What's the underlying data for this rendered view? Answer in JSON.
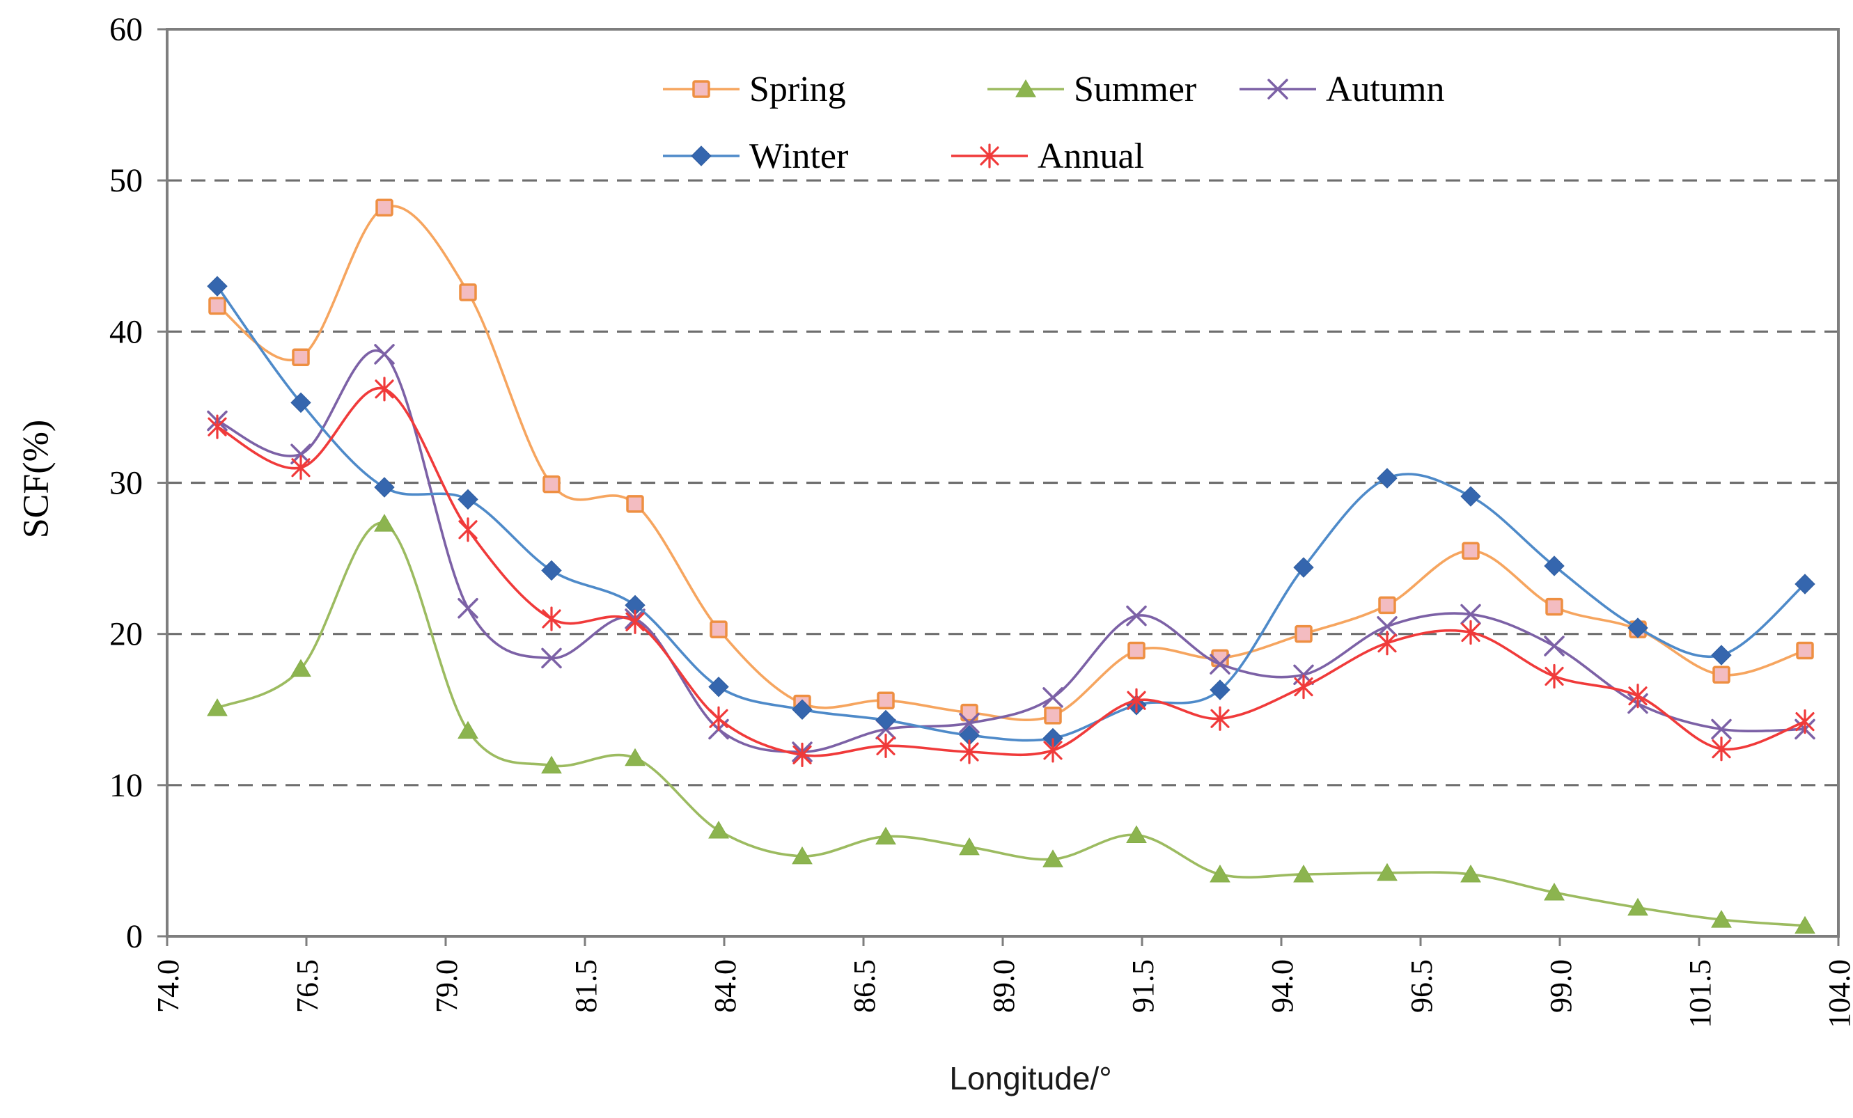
{
  "chart_data": {
    "type": "line",
    "title": "",
    "xlabel": "Longitude/°",
    "ylabel": "SCF(%)",
    "xlim": [
      74.0,
      104.0
    ],
    "ylim": [
      0,
      60
    ],
    "x_tick_labels": [
      "74.0",
      "76.5",
      "79.0",
      "81.5",
      "84.0",
      "86.5",
      "89.0",
      "91.5",
      "94.0",
      "96.5",
      "99.0",
      "101.5",
      "104.0"
    ],
    "y_tick_labels": [
      "0",
      "10",
      "20",
      "30",
      "40",
      "50",
      "60"
    ],
    "grid": "horizontal dashed at 10,20,30,40,50",
    "legend_position": "inside top-center, two rows, no border",
    "x": [
      74.9,
      76.4,
      77.9,
      79.4,
      80.9,
      82.4,
      83.9,
      85.4,
      86.9,
      88.4,
      89.9,
      91.4,
      92.9,
      94.4,
      95.9,
      97.4,
      98.9,
      100.4,
      101.9,
      103.4
    ],
    "series": [
      {
        "name": "Spring",
        "marker": "square",
        "line_color": "#F6A55F",
        "marker_fill": "#F3BCC1",
        "marker_stroke": "#EE8F42",
        "values": [
          41.7,
          38.3,
          48.2,
          42.6,
          29.9,
          28.6,
          20.3,
          15.4,
          15.6,
          14.8,
          14.6,
          18.9,
          18.4,
          20.0,
          21.9,
          25.5,
          21.8,
          20.3,
          17.3,
          18.9
        ]
      },
      {
        "name": "Summer",
        "marker": "triangle",
        "line_color": "#9CBB60",
        "marker_fill": "#8CB44F",
        "marker_stroke": "#84AC47",
        "values": [
          15.1,
          17.7,
          27.3,
          13.6,
          11.3,
          11.8,
          7.0,
          5.3,
          6.6,
          5.9,
          5.1,
          6.7,
          4.1,
          4.1,
          4.2,
          4.1,
          2.9,
          1.9,
          1.1,
          0.7
        ]
      },
      {
        "name": "Autumn",
        "marker": "x",
        "line_color": "#7C61A6",
        "marker_fill": "none",
        "marker_stroke": "#7C61A6",
        "values": [
          34.1,
          31.9,
          38.5,
          21.7,
          18.4,
          21.0,
          13.7,
          12.2,
          13.7,
          14.1,
          15.8,
          21.2,
          18.0,
          17.3,
          20.5,
          21.3,
          19.2,
          15.4,
          13.7,
          13.7
        ]
      },
      {
        "name": "Winter",
        "marker": "diamond",
        "line_color": "#4E8AC9",
        "marker_fill": "#3566AE",
        "marker_stroke": "#2F5DA0",
        "values": [
          43.0,
          35.3,
          29.7,
          28.9,
          24.2,
          21.9,
          16.5,
          15.0,
          14.3,
          13.3,
          13.1,
          15.3,
          16.3,
          24.4,
          30.3,
          29.1,
          24.5,
          20.4,
          18.6,
          23.3
        ]
      },
      {
        "name": "Annual",
        "marker": "asterisk",
        "line_color": "#F03A3A",
        "marker_fill": "none",
        "marker_stroke": "#F03A3A",
        "values": [
          33.7,
          31.0,
          36.2,
          26.9,
          21.0,
          20.8,
          14.4,
          12.0,
          12.6,
          12.2,
          12.3,
          15.6,
          14.4,
          16.5,
          19.4,
          20.1,
          17.2,
          15.9,
          12.4,
          14.2
        ]
      }
    ],
    "colors": {
      "grid": "#6E6E6E",
      "axis": "#7E7E7E",
      "text": "#000000",
      "background": "#FFFFFF"
    }
  }
}
